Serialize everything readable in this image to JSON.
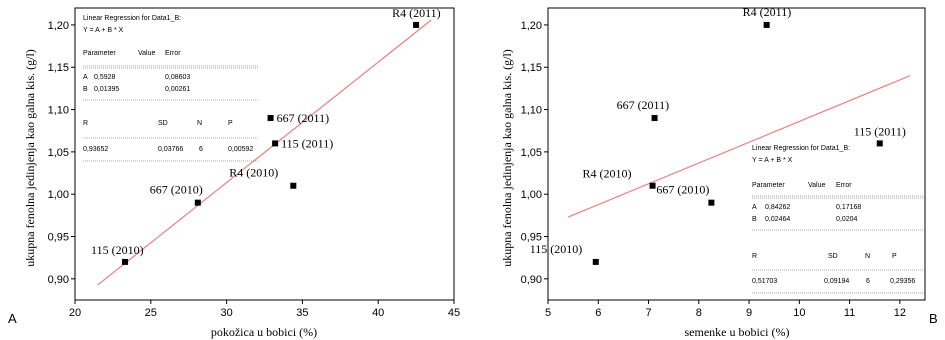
{
  "chart_data": [
    {
      "type": "scatter",
      "panel_letter": "A",
      "xlabel": "pokožica u bobici (%)",
      "ylabel": "ukupna fenolna jedinjenja kao galna kis. (g/l)",
      "xlim": [
        20,
        45
      ],
      "ylim": [
        0.875,
        1.22
      ],
      "xticks": [
        "20",
        "25",
        "30",
        "35",
        "40",
        "45"
      ],
      "yticks": [
        "0,90",
        "0,95",
        "1,00",
        "1,05",
        "1,10",
        "1,15",
        "1,20"
      ],
      "points": [
        {
          "label": "R4 (2011)",
          "x": 42.5,
          "y": 1.2
        },
        {
          "label": "667 (2011)",
          "x": 32.9,
          "y": 1.09
        },
        {
          "label": "115 (2011)",
          "x": 33.2,
          "y": 1.06
        },
        {
          "label": "R4 (2010)",
          "x": 34.4,
          "y": 1.01
        },
        {
          "label": "667 (2010)",
          "x": 28.1,
          "y": 0.99
        },
        {
          "label": "115 (2010)",
          "x": 23.3,
          "y": 0.92
        }
      ],
      "fit_line": {
        "x": [
          21.5,
          43.5
        ],
        "y": [
          0.8928,
          1.2058
        ],
        "color": "#e88080"
      },
      "regression_box": {
        "title": "Linear Regression for Data1_B:",
        "equation": "Y = A + B * X",
        "param_header": [
          "Parameter",
          "Value",
          "Error"
        ],
        "params": [
          [
            "A",
            "0,5928",
            "0,08603"
          ],
          [
            "B",
            "0,01395",
            "0,00261"
          ]
        ],
        "stat_header": [
          "R",
          "SD",
          "N",
          "P"
        ],
        "stats": [
          "0,93652",
          "0,03766",
          "6",
          "0,00592"
        ]
      }
    },
    {
      "type": "scatter",
      "panel_letter": "B",
      "xlabel": "semenke u bobici (%)",
      "ylabel": "ukupna fenolna jedinjenja kao galna kis. (g/l)",
      "xlim": [
        5,
        12.5
      ],
      "ylim": [
        0.875,
        1.22
      ],
      "xticks": [
        "5",
        "6",
        "7",
        "8",
        "9",
        "10",
        "11",
        "12"
      ],
      "yticks": [
        "0,90",
        "0,95",
        "1,00",
        "1,05",
        "1,10",
        "1,15",
        "1,20"
      ],
      "points": [
        {
          "label": "R4 (2011)",
          "x": 9.35,
          "y": 1.2
        },
        {
          "label": "667 (2011)",
          "x": 7.12,
          "y": 1.09
        },
        {
          "label": "115 (2011)",
          "x": 11.6,
          "y": 1.06
        },
        {
          "label": "R4 (2010)",
          "x": 7.08,
          "y": 1.01
        },
        {
          "label": "667 (2010)",
          "x": 8.25,
          "y": 0.99
        },
        {
          "label": "115 (2010)",
          "x": 5.95,
          "y": 0.92
        }
      ],
      "fit_line": {
        "x": [
          5.4,
          12.2
        ],
        "y": [
          0.973,
          1.14
        ],
        "color": "#e88080"
      },
      "regression_box": {
        "title": "Linear Regression for Data1_B:",
        "equation": "Y = A + B * X",
        "param_header": [
          "Parameter",
          "Value",
          "Error"
        ],
        "params": [
          [
            "A",
            "0,84262",
            "0,17168"
          ],
          [
            "B",
            "0,02464",
            "0,0204"
          ]
        ],
        "stat_header": [
          "R",
          "SD",
          "N",
          "P"
        ],
        "stats": [
          "0,51703",
          "0,09194",
          "6",
          "0,29356"
        ]
      }
    }
  ]
}
